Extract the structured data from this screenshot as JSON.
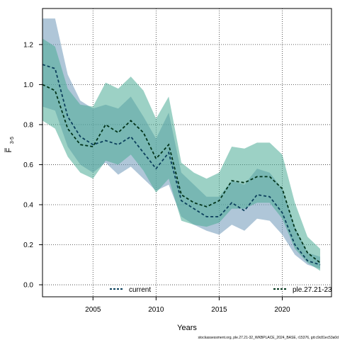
{
  "chart_data": {
    "type": "line",
    "xlabel": "Years",
    "ylabel_main": "F",
    "ylabel_sub": "3-5",
    "xlim": [
      2001,
      2023.9
    ],
    "ylim": [
      -0.06,
      1.38
    ],
    "xticks": [
      2005,
      2010,
      2015,
      2020
    ],
    "yticks": [
      0.0,
      0.2,
      0.4,
      0.6,
      0.8,
      1.0,
      1.2
    ],
    "ytick_labels": [
      "0.0",
      "0.2",
      "0.4",
      "0.6",
      "0.8",
      "1.0",
      "1.2"
    ],
    "grid": true,
    "footer": "stockassessment.org, ple.27.21-32_WKBPLACE_2024_BASE, r15376, git:c9c81ec53a0d",
    "series": [
      {
        "name": "current",
        "color": "#0b3f5c",
        "band_color": "#6e98b8",
        "x": [
          2001,
          2002,
          2003,
          2004,
          2005,
          2006,
          2007,
          2008,
          2009,
          2010,
          2011,
          2012,
          2013,
          2014,
          2015,
          2016,
          2017,
          2018,
          2019,
          2020,
          2021,
          2022,
          2023
        ],
        "y": [
          1.1,
          1.08,
          0.84,
          0.74,
          0.7,
          0.72,
          0.7,
          0.74,
          0.66,
          0.58,
          0.66,
          0.42,
          0.38,
          0.34,
          0.34,
          0.41,
          0.37,
          0.45,
          0.44,
          0.36,
          0.2,
          0.12,
          0.1
        ],
        "lower": [
          0.89,
          0.87,
          0.69,
          0.6,
          0.56,
          0.61,
          0.55,
          0.59,
          0.53,
          0.47,
          0.5,
          0.34,
          0.3,
          0.27,
          0.25,
          0.3,
          0.27,
          0.33,
          0.32,
          0.25,
          0.15,
          0.1,
          0.08
        ],
        "upper": [
          1.33,
          1.33,
          1.05,
          0.92,
          0.88,
          0.9,
          0.88,
          0.94,
          0.84,
          0.73,
          0.86,
          0.56,
          0.5,
          0.44,
          0.44,
          0.52,
          0.5,
          0.58,
          0.56,
          0.48,
          0.29,
          0.16,
          0.14
        ]
      },
      {
        "name": "ple.27.21-23",
        "color": "#003319",
        "band_color": "#4aab96",
        "x": [
          2001,
          2002,
          2003,
          2004,
          2005,
          2006,
          2007,
          2008,
          2009,
          2010,
          2011,
          2012,
          2013,
          2014,
          2015,
          2016,
          2017,
          2018,
          2019,
          2020,
          2021,
          2022,
          2023
        ],
        "y": [
          1.0,
          0.97,
          0.78,
          0.7,
          0.69,
          0.8,
          0.76,
          0.82,
          0.76,
          0.63,
          0.7,
          0.45,
          0.41,
          0.39,
          0.42,
          0.52,
          0.51,
          0.54,
          0.54,
          0.48,
          0.28,
          0.16,
          0.11
        ],
        "lower": [
          0.82,
          0.78,
          0.64,
          0.56,
          0.53,
          0.62,
          0.6,
          0.65,
          0.57,
          0.46,
          0.53,
          0.32,
          0.3,
          0.29,
          0.31,
          0.38,
          0.38,
          0.41,
          0.41,
          0.33,
          0.18,
          0.11,
          0.07
        ],
        "upper": [
          1.23,
          1.19,
          0.98,
          0.9,
          0.89,
          1.01,
          0.98,
          1.04,
          0.97,
          0.83,
          0.94,
          0.61,
          0.56,
          0.53,
          0.56,
          0.69,
          0.68,
          0.71,
          0.71,
          0.65,
          0.41,
          0.24,
          0.18
        ]
      }
    ]
  }
}
